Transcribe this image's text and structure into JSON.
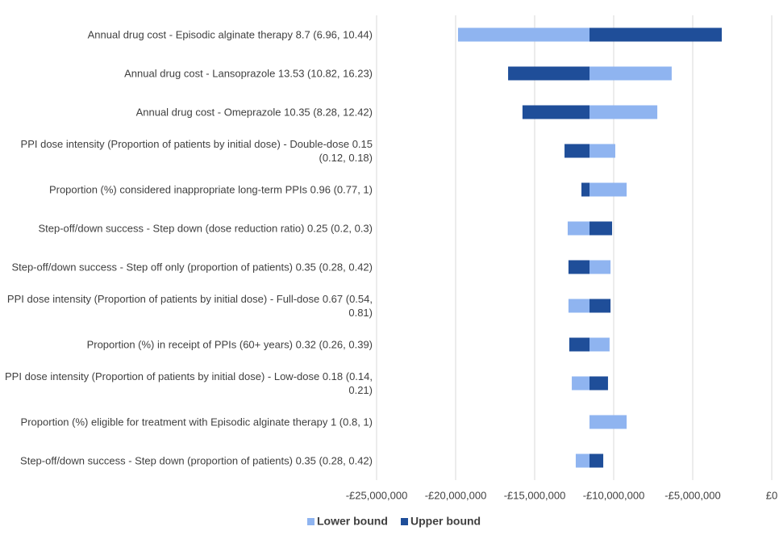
{
  "chart_data": {
    "type": "tornado",
    "categories": [
      "Annual drug cost - Episodic alginate therapy 8.7 (6.96, 10.44)",
      "Annual drug cost - Lansoprazole 13.53 (10.82, 16.23)",
      "Annual drug cost - Omeprazole 10.35 (8.28, 12.42)",
      "PPI dose intensity (Proportion of patients by initial dose) - Double-dose 0.15 (0.12, 0.18)",
      "Proportion (%) considered inappropriate long-term PPIs 0.96 (0.77, 1)",
      "Step-off/down success - Step down (dose reduction ratio) 0.25 (0.2, 0.3)",
      "Step-off/down success - Step off only (proportion of patients) 0.35 (0.28, 0.42)",
      "PPI dose intensity (Proportion of patients by initial dose) - Full-dose 0.67 (0.54, 0.81)",
      "Proportion (%) in receipt of PPIs (60+ years) 0.32 (0.26, 0.39)",
      "PPI dose intensity (Proportion of patients by initial dose) - Low-dose 0.18 (0.14, 0.21)",
      "Proportion (%) eligible for treatment with Episodic alginate therapy  1 (0.8, 1)",
      "Step-off/down success - Step down (proportion of patients) 0.35 (0.28, 0.42)"
    ],
    "base_value": -11530000,
    "series": [
      {
        "name": "Lower bound",
        "color": "#8fb4f0",
        "values": [
          -19850000,
          -6330000,
          -7240000,
          -9900000,
          -9180000,
          -12910000,
          -10200000,
          -12860000,
          -10260000,
          -12650000,
          -9180000,
          -12400000
        ]
      },
      {
        "name": "Upper bound",
        "color": "#1f4e99",
        "values": [
          -3160000,
          -16680000,
          -15770000,
          -13110000,
          -12040000,
          -10100000,
          -12860000,
          -10200000,
          -12810000,
          -10360000,
          -11530000,
          -10660000
        ]
      }
    ],
    "xlim": [
      -25000000,
      0
    ],
    "xticks": [
      {
        "value": -25000000,
        "label": "-£25,000,000"
      },
      {
        "value": -20000000,
        "label": "-£20,000,000"
      },
      {
        "value": -15000000,
        "label": "-£15,000,000"
      },
      {
        "value": -10000000,
        "label": "-£10,000,000"
      },
      {
        "value": -5000000,
        "label": "-£5,000,000"
      },
      {
        "value": 0,
        "label": "£0"
      }
    ],
    "grid": true,
    "legend": "bottom"
  }
}
